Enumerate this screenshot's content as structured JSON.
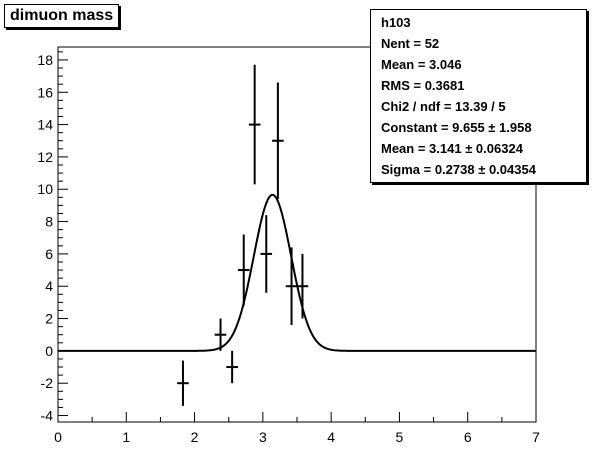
{
  "chart_data": {
    "type": "scatter",
    "title": "dimuon mass",
    "xlim": [
      0,
      7
    ],
    "ylim": [
      -4.4,
      18.8
    ],
    "x_ticks": [
      "0",
      "1",
      "2",
      "3",
      "4",
      "5",
      "6",
      "7"
    ],
    "y_ticks": [
      "-4",
      "-2",
      "0",
      "2",
      "4",
      "6",
      "8",
      "10",
      "12",
      "14",
      "16",
      "18"
    ],
    "grid": false,
    "legend": "top-right",
    "series": [
      {
        "kind": "histogram-with-errors",
        "points": [
          {
            "x": 1.83,
            "y": -2,
            "err": 1.4
          },
          {
            "x": 2.38,
            "y": 1,
            "err": 1.0
          },
          {
            "x": 2.55,
            "y": -1,
            "err": 1.0
          },
          {
            "x": 2.72,
            "y": 5,
            "err": 2.2
          },
          {
            "x": 2.88,
            "y": 14,
            "err": 3.7
          },
          {
            "x": 3.05,
            "y": 6,
            "err": 2.4
          },
          {
            "x": 3.22,
            "y": 13,
            "err": 3.6
          },
          {
            "x": 3.42,
            "y": 4,
            "err": 2.4
          },
          {
            "x": 3.58,
            "y": 4,
            "err": 2.0
          }
        ]
      },
      {
        "kind": "gaussian-fit",
        "constant": 9.655,
        "mean": 3.141,
        "sigma": 0.2738,
        "color": "#000000"
      }
    ],
    "stats": {
      "name": "h103",
      "rows": [
        "Nent = 52",
        "Mean  =  3.046",
        "RMS   = 0.3681",
        "Chi2 / ndf = 13.39 / 5",
        "Constant = 9.655  ± 1.958",
        "Mean     = 3.141  ± 0.06324",
        "Sigma    = 0.2738  ± 0.04354"
      ]
    }
  }
}
